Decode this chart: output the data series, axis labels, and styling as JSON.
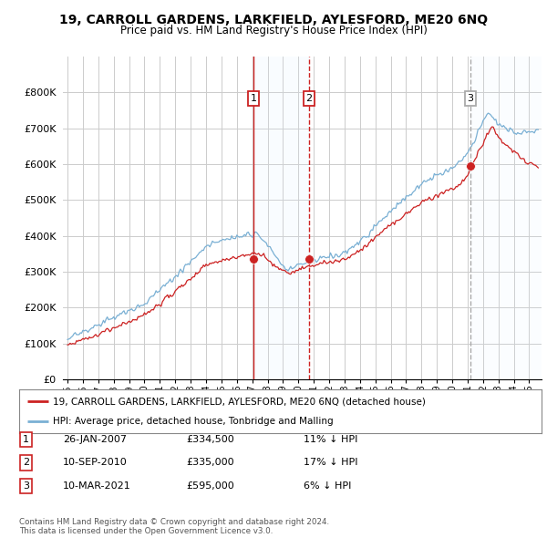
{
  "title": "19, CARROLL GARDENS, LARKFIELD, AYLESFORD, ME20 6NQ",
  "subtitle": "Price paid vs. HM Land Registry's House Price Index (HPI)",
  "ylim": [
    0,
    900000
  ],
  "yticks": [
    0,
    100000,
    200000,
    300000,
    400000,
    500000,
    600000,
    700000,
    800000
  ],
  "ytick_labels": [
    "£0",
    "£100K",
    "£200K",
    "£300K",
    "£400K",
    "£500K",
    "£600K",
    "£700K",
    "£800K"
  ],
  "hpi_color": "#7ab0d4",
  "price_color": "#cc2222",
  "vline1_color": "#cc2222",
  "vline2_color": "#cc2222",
  "vline3_color": "#aaaaaa",
  "shade_color": "#ddeeff",
  "purchases": [
    {
      "date_num": 2007.08,
      "price": 334500,
      "label": "1"
    },
    {
      "date_num": 2010.69,
      "price": 335000,
      "label": "2"
    },
    {
      "date_num": 2021.19,
      "price": 595000,
      "label": "3"
    }
  ],
  "legend_entries": [
    "19, CARROLL GARDENS, LARKFIELD, AYLESFORD, ME20 6NQ (detached house)",
    "HPI: Average price, detached house, Tonbridge and Malling"
  ],
  "table_rows": [
    {
      "num": "1",
      "date": "26-JAN-2007",
      "price": "£334,500",
      "hpi": "11% ↓ HPI"
    },
    {
      "num": "2",
      "date": "10-SEP-2010",
      "price": "£335,000",
      "hpi": "17% ↓ HPI"
    },
    {
      "num": "3",
      "date": "10-MAR-2021",
      "price": "£595,000",
      "hpi": "6% ↓ HPI"
    }
  ],
  "footnote": "Contains HM Land Registry data © Crown copyright and database right 2024.\nThis data is licensed under the Open Government Licence v3.0.",
  "background_color": "#ffffff",
  "grid_color": "#cccccc",
  "xlim_left": 1994.7,
  "xlim_right": 2025.8
}
